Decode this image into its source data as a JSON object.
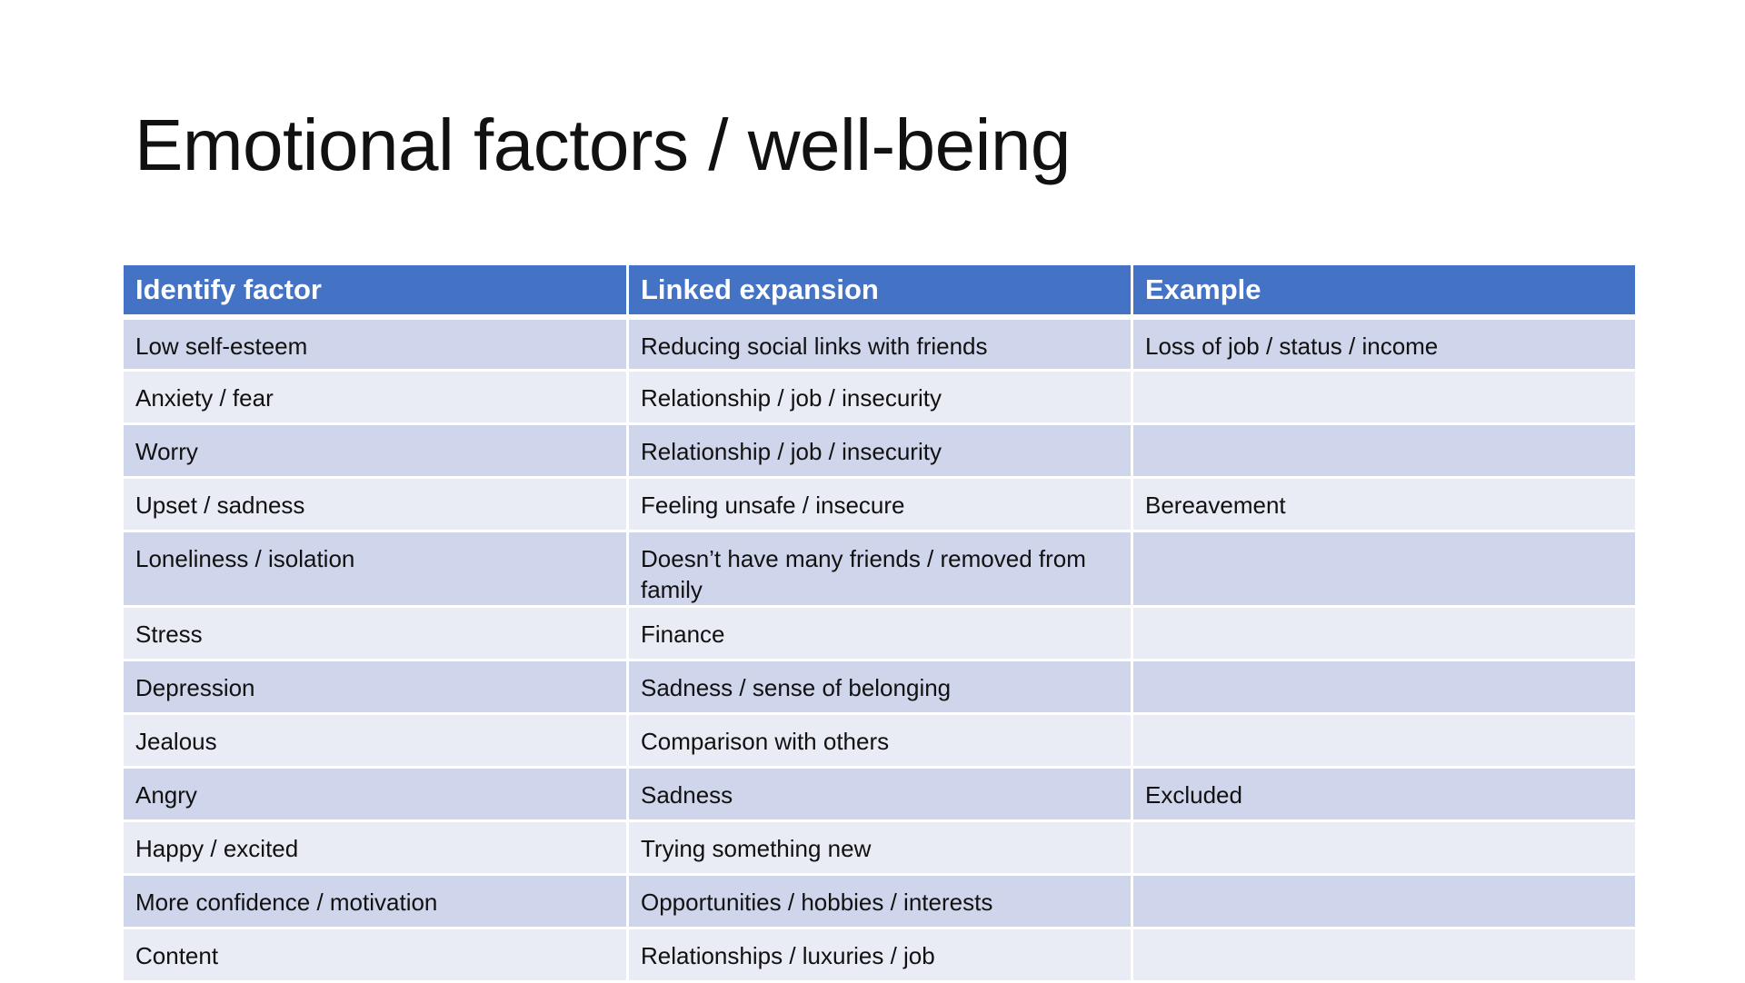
{
  "title": "Emotional factors / well-being",
  "table": {
    "headers": [
      "Identify factor",
      "Linked expansion",
      "Example"
    ],
    "rows": [
      [
        "Low self-esteem",
        "Reducing social links with friends",
        "Loss of job / status / income"
      ],
      [
        "Anxiety / fear",
        "Relationship / job / insecurity",
        ""
      ],
      [
        "Worry",
        "Relationship / job / insecurity",
        ""
      ],
      [
        "Upset / sadness",
        "Feeling unsafe / insecure",
        "Bereavement"
      ],
      [
        "Loneliness / isolation",
        "Doesn’t have many friends / removed from family",
        ""
      ],
      [
        "Stress",
        "Finance",
        ""
      ],
      [
        "Depression",
        "Sadness / sense of belonging",
        ""
      ],
      [
        "Jealous",
        "Comparison with others",
        ""
      ],
      [
        "Angry",
        "Sadness",
        "Excluded"
      ],
      [
        "Happy / excited",
        "Trying something new",
        ""
      ],
      [
        "More confidence / motivation",
        "Opportunities / hobbies / interests",
        ""
      ],
      [
        "Content",
        "Relationships / luxuries / job",
        ""
      ]
    ]
  },
  "colors": {
    "header_bg": "#4472c4",
    "row_odd_bg": "#cfd5ea",
    "row_even_bg": "#e9ebf5"
  }
}
